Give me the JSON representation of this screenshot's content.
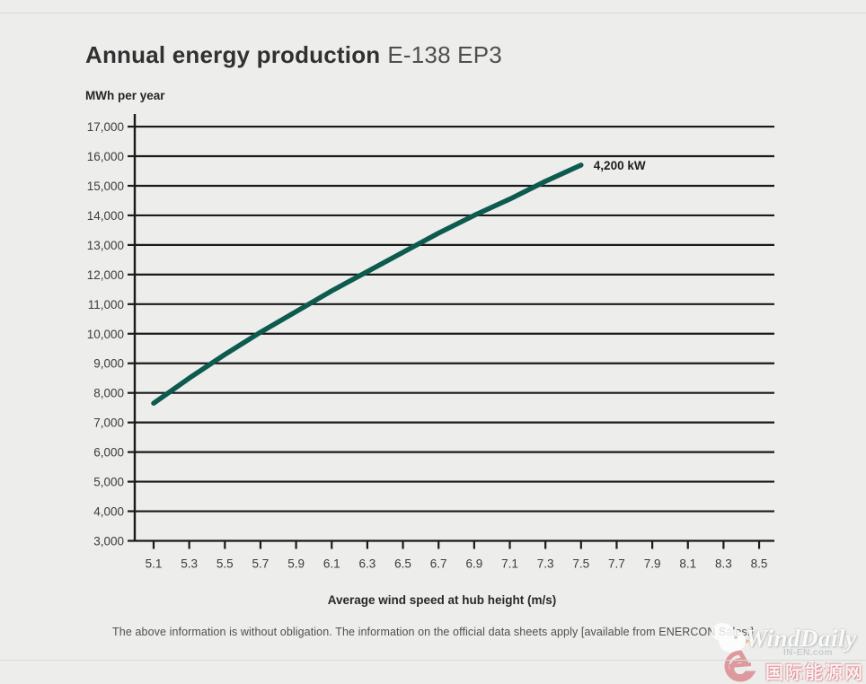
{
  "header": {
    "title": "Annual energy production",
    "model": "E-138 EP3"
  },
  "chart_data": {
    "type": "line",
    "title": "Annual energy production E-138 EP3",
    "ylabel": "MWh per year",
    "xlabel": "Average wind speed at hub height (m/s)",
    "xlim": [
      5.1,
      8.5
    ],
    "ylim": [
      3000,
      17000
    ],
    "grid": "horizontal",
    "x_ticks": [
      5.1,
      5.3,
      5.5,
      5.7,
      5.9,
      6.1,
      6.3,
      6.5,
      6.7,
      6.9,
      7.1,
      7.3,
      7.5,
      7.7,
      7.9,
      8.1,
      8.3,
      8.5
    ],
    "y_ticks": [
      3000,
      4000,
      5000,
      6000,
      7000,
      8000,
      9000,
      10000,
      11000,
      12000,
      13000,
      14000,
      15000,
      16000,
      17000
    ],
    "legend_position": "annotation at line end",
    "series": [
      {
        "name": "4,200 kW",
        "color": "#0d5b4e",
        "x": [
          5.1,
          5.3,
          5.5,
          5.7,
          5.9,
          6.1,
          6.3,
          6.5,
          6.7,
          6.9,
          7.1,
          7.3,
          7.5
        ],
        "values": [
          7650,
          8500,
          9300,
          10050,
          10750,
          11450,
          12100,
          12750,
          13400,
          14000,
          14550,
          15150,
          15700
        ]
      }
    ]
  },
  "annotation": {
    "label": "4,200 kW"
  },
  "footer": {
    "disclaimer": "The above information is without obligation. The information on the official data sheets apply [available from ENERCON Sales.]"
  },
  "watermark": {
    "brand": "WindDaily",
    "site_url": "IN-EN.com",
    "site_name": "国际能源网"
  },
  "colors": {
    "background": "#ededec",
    "grid": "#1a1a1a",
    "curve": "#0d5b4e",
    "watermark_red": "#d1565f"
  }
}
